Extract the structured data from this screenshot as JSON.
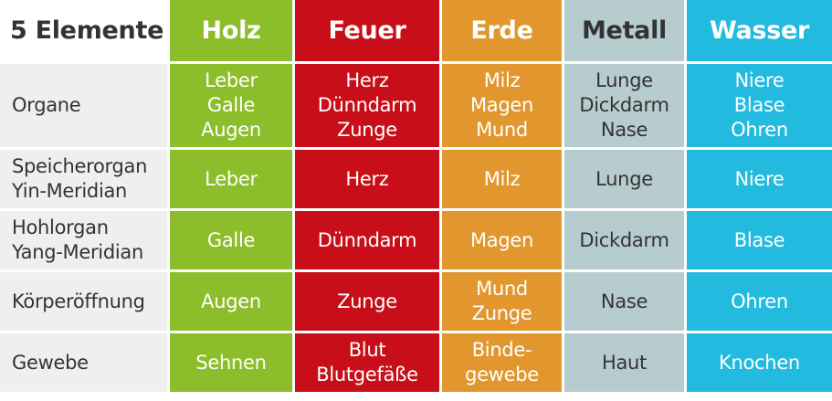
{
  "header": {
    "label": "5 Elemente",
    "elements": [
      {
        "key": "holz",
        "name": "Holz"
      },
      {
        "key": "feuer",
        "name": "Feuer"
      },
      {
        "key": "erde",
        "name": "Erde"
      },
      {
        "key": "metall",
        "name": "Metall"
      },
      {
        "key": "wasser",
        "name": "Wasser"
      }
    ]
  },
  "rows": [
    {
      "label": [
        "Organe"
      ],
      "cells": [
        [
          "Leber",
          "Galle",
          "Augen"
        ],
        [
          "Herz",
          "Dünndarm",
          "Zunge"
        ],
        [
          "Milz",
          "Magen",
          "Mund"
        ],
        [
          "Lunge",
          "Dickdarm",
          "Nase"
        ],
        [
          "Niere",
          "Blase",
          "Ohren"
        ]
      ]
    },
    {
      "label": [
        "Speicherorgan",
        "Yin-Meridian"
      ],
      "cells": [
        [
          "Leber"
        ],
        [
          "Herz"
        ],
        [
          "Milz"
        ],
        [
          "Lunge"
        ],
        [
          "Niere"
        ]
      ]
    },
    {
      "label": [
        "Hohlorgan",
        "Yang-Meridian"
      ],
      "cells": [
        [
          "Galle"
        ],
        [
          "Dünndarm"
        ],
        [
          "Magen"
        ],
        [
          "Dickdarm"
        ],
        [
          "Blase"
        ]
      ]
    },
    {
      "label": [
        "Körperöffnung"
      ],
      "cells": [
        [
          "Augen"
        ],
        [
          "Zunge"
        ],
        [
          "Mund",
          "Zunge"
        ],
        [
          "Nase"
        ],
        [
          "Ohren"
        ]
      ]
    },
    {
      "label": [
        "Gewebe"
      ],
      "cells": [
        [
          "Sehnen"
        ],
        [
          "Blut",
          "Blutgefäße"
        ],
        [
          "Binde-",
          "gewebe"
        ],
        [
          "Haut"
        ],
        [
          "Knochen"
        ]
      ]
    }
  ],
  "colors": {
    "holz": "#8cbd2a",
    "feuer": "#c80e18",
    "erde": "#e1972e",
    "metall": "#b7cccf",
    "wasser": "#22bbdf",
    "label_bg": "#efefef",
    "text_dark": "#333333"
  }
}
